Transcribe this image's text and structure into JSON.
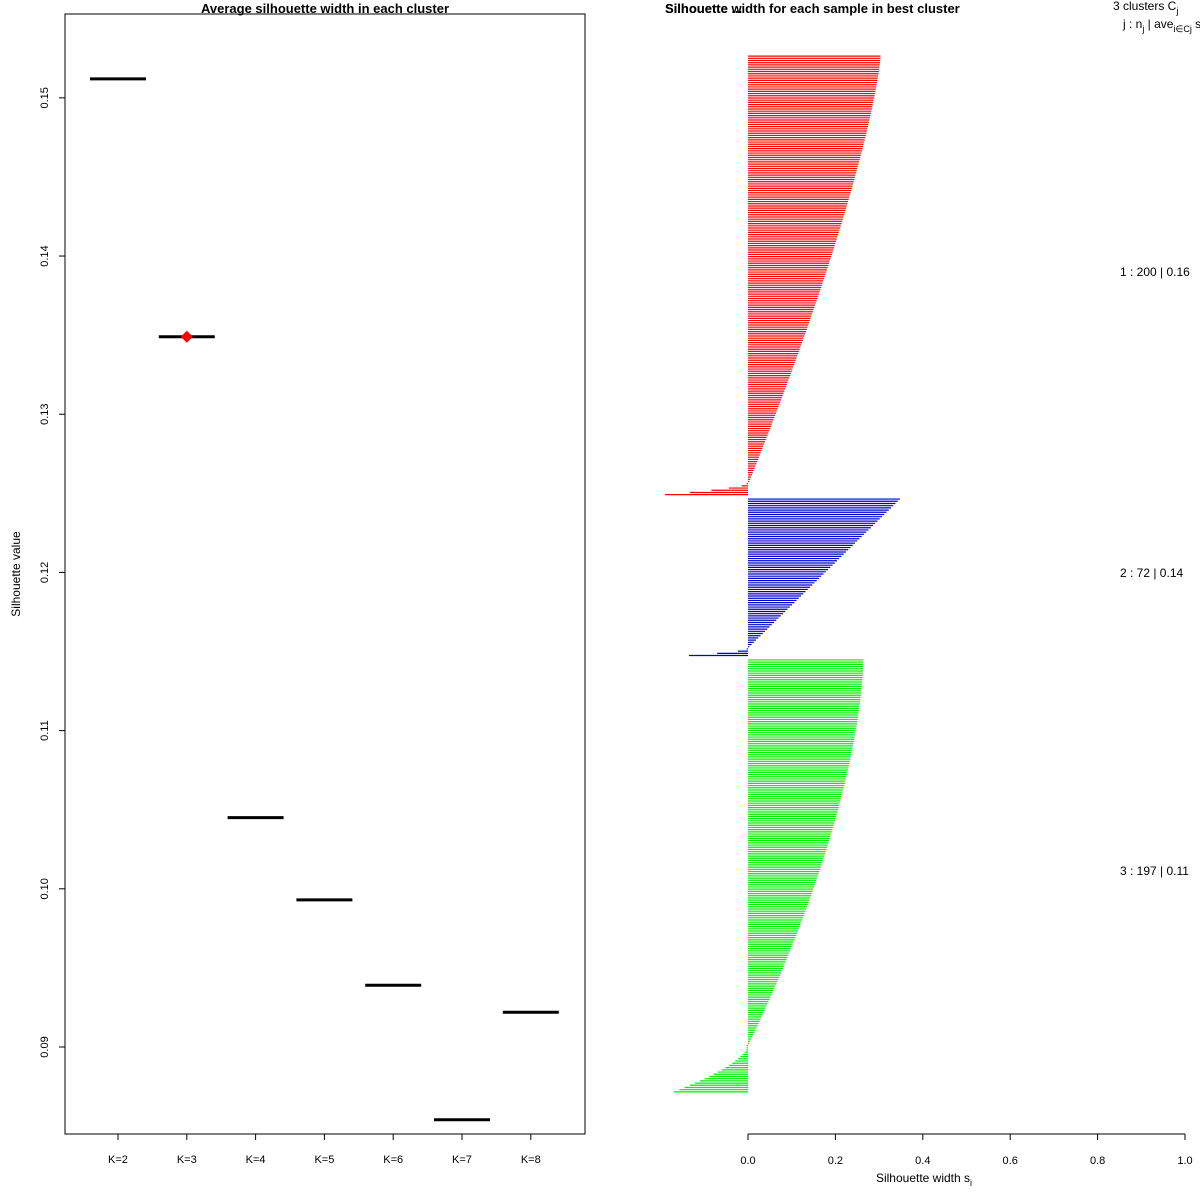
{
  "chart_data": [
    {
      "type": "scatter",
      "title": "Average silhouette width in each cluster",
      "xlabel": "",
      "ylabel": "Silhouette value",
      "categories": [
        "K=2",
        "K=3",
        "K=4",
        "K=5",
        "K=6",
        "K=7",
        "K=8"
      ],
      "values": [
        0.1512,
        0.1349,
        0.1045,
        0.0993,
        0.0939,
        0.0854,
        0.0922
      ],
      "best": {
        "category": "K=3",
        "value": 0.1349,
        "color": "#ff0000"
      },
      "ylim": [
        0.0845,
        0.1553
      ],
      "yticks": [
        0.09,
        0.1,
        0.11,
        0.12,
        0.13,
        0.14,
        0.15
      ],
      "ytick_labels": [
        "0.09",
        "0.10",
        "0.11",
        "0.12",
        "0.13",
        "0.14",
        "0.15"
      ],
      "line_color": "#000000"
    },
    {
      "type": "bar",
      "orientation": "horizontal",
      "title": "Silhouette width for each sample in best cluster",
      "overlapping_title": "Silhouette ...",
      "xlabel": "Silhouette width s",
      "xlabel_subscript": "i",
      "xlim": [
        0.0,
        1.0
      ],
      "xticks": [
        0.0,
        0.2,
        0.4,
        0.6,
        0.8,
        1.0
      ],
      "xtick_labels": [
        "0.0",
        "0.2",
        "0.4",
        "0.6",
        "0.8",
        "1.0"
      ],
      "legend": {
        "header": "3  clusters  C",
        "header_sub": "j",
        "subheader": "j :  n",
        "subheader_n_sub": "j",
        "subheader_mid": " | ave",
        "subheader_ave_sub": "i∈Cj",
        "subheader_end": "  s"
      },
      "clusters": [
        {
          "id": 1,
          "n": 200,
          "avg": 0.16,
          "label": "1 :  200  |  0.16",
          "color": "#ff0000",
          "max": 0.305,
          "min": -0.19,
          "shape": 1.3,
          "neg_count": 6
        },
        {
          "id": 2,
          "n": 72,
          "avg": 0.14,
          "label": "2 :  72  |  0.14",
          "color": "#0000cc",
          "max": 0.35,
          "min": -0.135,
          "shape": 1.0,
          "neg_count": 4
        },
        {
          "id": 3,
          "n": 197,
          "avg": 0.11,
          "label": "3 :  197  |  0.11",
          "color": "#00ee00",
          "max": 0.265,
          "min": -0.17,
          "shape": 1.6,
          "neg_count": 22
        }
      ]
    }
  ]
}
